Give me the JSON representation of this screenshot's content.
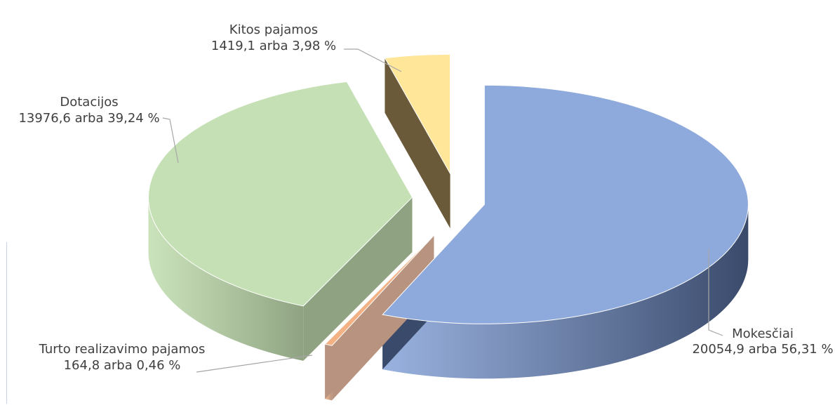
{
  "chart_data": {
    "type": "pie",
    "style": "3d-exploded",
    "title": "",
    "legend": "none",
    "slices": [
      {
        "key": "mokesciai",
        "name": "Mokesčiai",
        "value": 20054.9,
        "percent": 56.31,
        "label_name": "Mokesčiai",
        "label_value": "20054,9 arba 56,31 %",
        "color": "#8ea9db",
        "side_color": "#3a4a6b"
      },
      {
        "key": "turto",
        "name": "Turto realizavimo pajamos",
        "value": 164.8,
        "percent": 0.46,
        "label_name": "Turto realizavimo pajamos",
        "label_value": "164,8 arba 0,46 %",
        "color": "#f4b183",
        "side_color": "#b8937f"
      },
      {
        "key": "dotacijos",
        "name": "Dotacijos",
        "value": 13976.6,
        "percent": 39.24,
        "label_name": "Dotacijos",
        "label_value": "13976,6 arba 39,24 %",
        "color": "#c5e0b4",
        "side_color": "#8fa382"
      },
      {
        "key": "kitos",
        "name": "Kitos pajamos",
        "value": 1419.1,
        "percent": 3.98,
        "label_name": "Kitos pajamos",
        "label_value": "1419,1 arba 3,98 %",
        "color": "#ffe699",
        "side_color": "#6b5a3a"
      }
    ]
  }
}
